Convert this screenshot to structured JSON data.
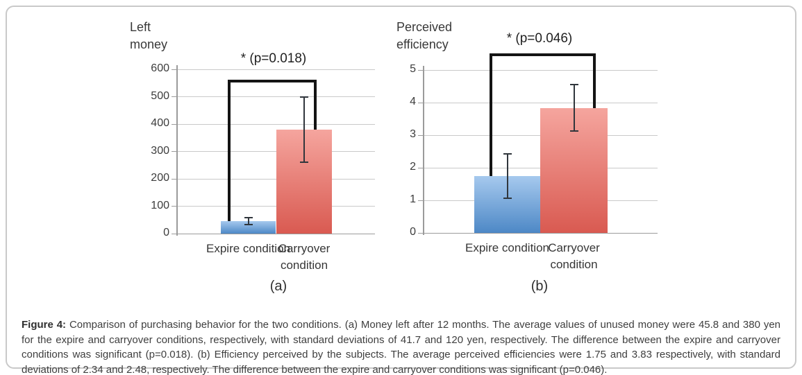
{
  "figure": {
    "caption": {
      "label": "Figure 4:",
      "text": "Comparison of purchasing behavior for the two conditions. (a) Money left after 12 months. The average values of unused money were 45.8 and 380 yen for the expire and carryover conditions, respectively, with standard deviations of 41.7 and 120 yen, respectively. The difference between the expire and carryover conditions was significant (p=0.018). (b) Efficiency perceived by the subjects. The average perceived efficiencies were 1.75 and 3.83 respectively, with standard deviations of 2.34 and 2.48, respectively. The difference between the expire and carryover conditions was significant (p=0.046)."
    }
  },
  "chart_data": [
    {
      "type": "bar",
      "panel_label": "(a)",
      "title": "Left money",
      "significance_label": "* (p=0.018)",
      "categories": [
        "Expire condition",
        "Carryover condition"
      ],
      "values": [
        45.8,
        380
      ],
      "error_bars": {
        "low": [
          34,
          260
        ],
        "high": [
          58,
          500
        ]
      },
      "ylim": [
        0,
        600
      ],
      "yticks": [
        0,
        100,
        200,
        300,
        400,
        500,
        600
      ],
      "grid": true,
      "legend": "none",
      "bar_colors": [
        {
          "top": "#a6c9ee",
          "bottom": "#4d88c6"
        },
        {
          "top": "#f5a59e",
          "bottom": "#d95a51"
        }
      ]
    },
    {
      "type": "bar",
      "panel_label": "(b)",
      "title": "Perceived efficiency",
      "significance_label": "* (p=0.046)",
      "categories": [
        "Expire condition",
        "Carryover condition"
      ],
      "values": [
        1.75,
        3.83
      ],
      "error_bars": {
        "low": [
          1.07,
          3.12
        ],
        "high": [
          2.43,
          4.55
        ]
      },
      "ylim": [
        0,
        5
      ],
      "yticks": [
        0,
        1,
        2,
        3,
        4,
        5
      ],
      "grid": true,
      "legend": "none",
      "bar_colors": [
        {
          "top": "#a6c9ee",
          "bottom": "#4d88c6"
        },
        {
          "top": "#f5a59e",
          "bottom": "#d95a51"
        }
      ]
    }
  ],
  "colors": {
    "gridline": "#c9c9c9",
    "axis": "#9b9b9b",
    "bracket": "#141414",
    "error_bar": "#30363c",
    "frame_border": "#c9c9c9",
    "chart_text": "#3a3a3a"
  }
}
